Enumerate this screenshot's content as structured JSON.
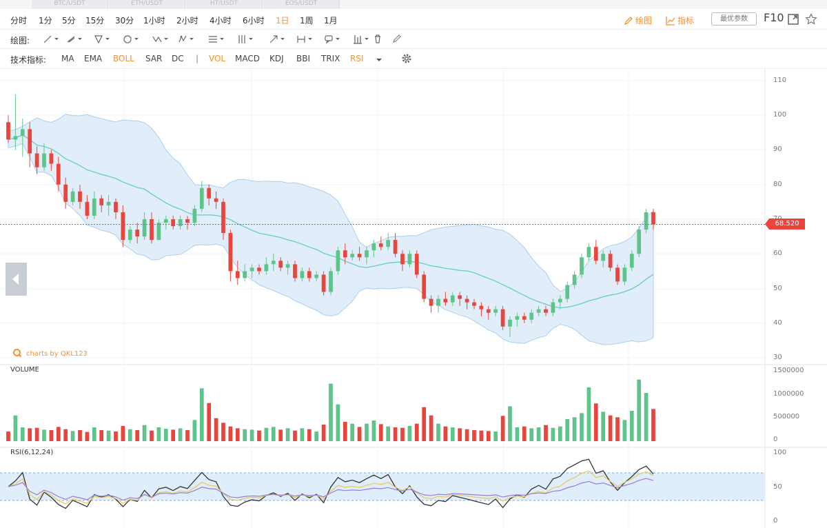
{
  "tabs": [
    "BTC/USDT",
    "ETH/USDT",
    "HT/USDT",
    "EOS/USDT"
  ],
  "timeframes": [
    "分时",
    "1分",
    "5分",
    "15分",
    "30分",
    "1小时",
    "2小时",
    "4小时",
    "6小时",
    "1日",
    "1周",
    "1月"
  ],
  "active_timeframe": "1日",
  "right_tools": {
    "draw_label": "绘图",
    "indicator_label": "指标",
    "params_label": "最优参数",
    "f10_label": "F10"
  },
  "drawing": {
    "label": "绘图:",
    "tools": [
      "line-tool-icon",
      "ray-tool-icon",
      "channel-tool-icon",
      "circle-tool-icon",
      "zigzag-tool-icon",
      "pattern-tool-icon",
      "fib-tool-icon",
      "gann-tool-icon",
      "arrow-tool-icon",
      "measure-tool-icon",
      "comment-tool-icon",
      "bars-tool-icon",
      "trash-icon",
      "pen-icon"
    ]
  },
  "indicators": {
    "label": "技术指标:",
    "main": [
      "MA",
      "EMA",
      "BOLL",
      "SAR",
      "DC"
    ],
    "sub": [
      "VOL",
      "MACD",
      "KDJ",
      "BBI",
      "TRIX",
      "RSI"
    ],
    "active": [
      "BOLL",
      "VOL",
      "RSI"
    ]
  },
  "watermark": "charts by QKL123",
  "price_axis": [
    "110",
    "100",
    "90",
    "80",
    "70",
    "60",
    "50",
    "40",
    "30"
  ],
  "volume_axis": [
    "1500000",
    "1000000",
    "500000",
    "0"
  ],
  "rsi_axis": [
    "100",
    "50",
    "0"
  ],
  "volume_label": "VOLUME",
  "rsi_label": "RSI(6,12,24)",
  "current_price": "68.520",
  "colors": {
    "up": "#5fc38b",
    "down": "#e8453c",
    "accent": "#f5922f",
    "band_fill": "#dcecfa",
    "band_line": "#9cc7ea",
    "mid_line": "#66ccc2",
    "rsi6": "#333333",
    "rsi12": "#e5c85a",
    "rsi24": "#9b7bd9"
  },
  "chart_data": {
    "type": "candlestick",
    "ylim": [
      30,
      110
    ],
    "candles": [
      [
        98,
        100,
        92,
        93
      ],
      [
        93,
        106,
        90,
        94
      ],
      [
        94,
        99,
        88,
        96
      ],
      [
        96,
        98,
        85,
        89
      ],
      [
        89,
        91,
        83,
        85
      ],
      [
        85,
        92,
        84,
        89
      ],
      [
        89,
        90,
        84,
        86
      ],
      [
        86,
        88,
        78,
        80
      ],
      [
        80,
        82,
        73,
        75
      ],
      [
        75,
        79,
        74,
        78
      ],
      [
        78,
        80,
        73,
        75
      ],
      [
        75,
        77,
        70,
        71
      ],
      [
        71,
        78,
        70,
        76
      ],
      [
        76,
        77,
        72,
        74
      ],
      [
        74,
        77,
        71,
        75
      ],
      [
        75,
        76,
        70,
        72
      ],
      [
        72,
        74,
        62,
        64
      ],
      [
        64,
        68,
        63,
        67
      ],
      [
        67,
        69,
        63,
        65
      ],
      [
        65,
        72,
        64,
        70
      ],
      [
        70,
        72,
        63,
        64
      ],
      [
        64,
        70,
        64,
        69
      ],
      [
        69,
        71,
        67,
        70
      ],
      [
        70,
        71,
        67,
        68
      ],
      [
        68,
        71,
        67,
        70
      ],
      [
        70,
        71,
        67,
        69
      ],
      [
        69,
        74,
        68,
        73
      ],
      [
        73,
        81,
        72,
        79
      ],
      [
        79,
        80,
        74,
        76
      ],
      [
        76,
        78,
        73,
        75
      ],
      [
        75,
        76,
        64,
        66
      ],
      [
        66,
        67,
        52,
        55
      ],
      [
        55,
        58,
        51,
        53
      ],
      [
        53,
        57,
        52,
        55
      ],
      [
        55,
        57,
        53,
        56
      ],
      [
        56,
        57,
        54,
        55
      ],
      [
        55,
        59,
        54,
        57
      ],
      [
        57,
        60,
        55,
        58
      ],
      [
        58,
        59,
        55,
        56
      ],
      [
        56,
        58,
        54,
        57
      ],
      [
        57,
        58,
        52,
        53
      ],
      [
        53,
        56,
        52,
        55
      ],
      [
        55,
        56,
        52,
        53
      ],
      [
        53,
        55,
        52,
        54
      ],
      [
        54,
        55,
        48,
        49
      ],
      [
        49,
        56,
        48,
        55
      ],
      [
        55,
        62,
        54,
        61
      ],
      [
        61,
        63,
        57,
        59
      ],
      [
        59,
        61,
        58,
        60
      ],
      [
        60,
        62,
        58,
        59
      ],
      [
        59,
        62,
        57,
        61
      ],
      [
        61,
        64,
        59,
        63
      ],
      [
        63,
        65,
        61,
        62
      ],
      [
        62,
        66,
        61,
        64
      ],
      [
        64,
        66,
        59,
        60
      ],
      [
        60,
        61,
        55,
        57
      ],
      [
        57,
        61,
        56,
        60
      ],
      [
        60,
        61,
        53,
        54
      ],
      [
        54,
        55,
        46,
        47
      ],
      [
        47,
        48,
        43,
        45
      ],
      [
        45,
        48,
        43,
        47
      ],
      [
        47,
        49,
        45,
        46
      ],
      [
        46,
        49,
        45,
        48
      ],
      [
        48,
        49,
        45,
        47
      ],
      [
        47,
        48,
        44,
        46
      ],
      [
        46,
        47,
        44,
        45
      ],
      [
        45,
        46,
        42,
        44
      ],
      [
        44,
        45,
        41,
        43
      ],
      [
        43,
        45,
        42,
        44
      ],
      [
        44,
        45,
        38,
        39
      ],
      [
        39,
        42,
        36,
        41
      ],
      [
        41,
        43,
        39,
        42
      ],
      [
        42,
        43,
        40,
        41
      ],
      [
        41,
        44,
        40,
        43
      ],
      [
        43,
        45,
        42,
        44
      ],
      [
        44,
        45,
        42,
        43
      ],
      [
        43,
        47,
        42,
        46
      ],
      [
        46,
        48,
        44,
        47
      ],
      [
        47,
        52,
        46,
        51
      ],
      [
        51,
        55,
        50,
        54
      ],
      [
        54,
        60,
        53,
        59
      ],
      [
        59,
        63,
        58,
        62
      ],
      [
        62,
        64,
        57,
        58
      ],
      [
        58,
        61,
        56,
        60
      ],
      [
        60,
        61,
        55,
        56
      ],
      [
        56,
        57,
        51,
        52
      ],
      [
        52,
        57,
        51,
        56
      ],
      [
        56,
        61,
        55,
        60
      ],
      [
        60,
        68,
        59,
        67
      ],
      [
        67,
        73,
        66,
        72
      ],
      [
        72,
        73,
        67,
        68.5
      ]
    ],
    "volume": [
      210000,
      560000,
      300000,
      280000,
      290000,
      250000,
      240000,
      310000,
      260000,
      220000,
      240000,
      200000,
      300000,
      240000,
      230000,
      210000,
      330000,
      260000,
      240000,
      350000,
      230000,
      300000,
      270000,
      250000,
      280000,
      240000,
      460000,
      1150000,
      830000,
      500000,
      400000,
      320000,
      280000,
      260000,
      250000,
      230000,
      290000,
      310000,
      250000,
      280000,
      230000,
      280000,
      260000,
      210000,
      360000,
      1250000,
      800000,
      420000,
      380000,
      310000,
      380000,
      450000,
      370000,
      320000,
      300000,
      290000,
      330000,
      380000,
      740000,
      560000,
      380000,
      320000,
      300000,
      280000,
      260000,
      240000,
      230000,
      220000,
      210000,
      550000,
      760000,
      300000,
      320000,
      280000,
      300000,
      350000,
      290000,
      320000,
      480000,
      520000,
      610000,
      1170000,
      820000,
      640000,
      560000,
      520000,
      460000,
      660000,
      1340000,
      1050000,
      700000
    ],
    "rsi_range": [
      0,
      100
    ]
  }
}
